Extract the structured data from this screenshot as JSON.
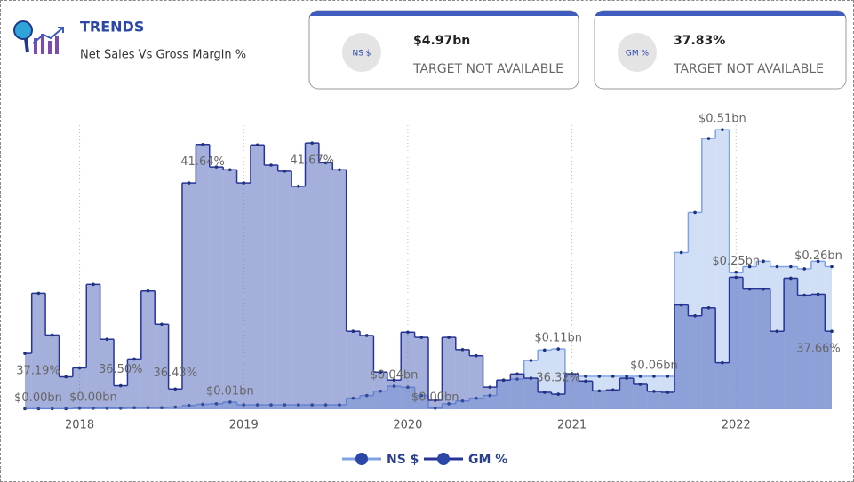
{
  "header": {
    "title": "TRENDS",
    "subtitle": "Net Sales Vs Gross Margin %"
  },
  "cards": [
    {
      "badge": "NS $",
      "value": "$4.97bn",
      "note": "TARGET NOT AVAILABLE"
    },
    {
      "badge": "GM %",
      "value": "37.83%",
      "note": "TARGET NOT AVAILABLE"
    }
  ],
  "chart_data": {
    "type": "step-area",
    "categories": [
      null,
      null,
      null,
      null,
      "2018",
      null,
      null,
      null,
      null,
      null,
      null,
      null,
      null,
      null,
      null,
      null,
      "2019",
      null,
      null,
      null,
      null,
      null,
      null,
      null,
      null,
      null,
      null,
      null,
      "2020",
      null,
      null,
      null,
      null,
      null,
      null,
      null,
      null,
      null,
      null,
      null,
      "2021",
      null,
      null,
      null,
      null,
      null,
      null,
      null,
      null,
      null,
      null,
      null,
      "2022",
      null,
      null,
      null,
      null,
      null,
      null,
      null
    ],
    "ylim": [
      0,
      0.52
    ],
    "y2lim": [
      36,
      42.07
    ],
    "grid": true,
    "legend": "bottom",
    "series": [
      {
        "name": "NS $",
        "color": "#7fa2e4",
        "fill": "#b3c9f0",
        "marker": "#1f3278",
        "values": [
          0.001,
          0.001,
          0.001,
          0.001,
          0.002,
          0.002,
          0.002,
          0.002,
          0.003,
          0.003,
          0.003,
          0.004,
          0.007,
          0.009,
          0.01,
          0.013,
          0.008,
          0.008,
          0.008,
          0.008,
          0.008,
          0.008,
          0.008,
          0.008,
          0.02,
          0.025,
          0.033,
          0.042,
          0.04,
          0.025,
          0.002,
          0.01,
          0.015,
          0.02,
          0.025,
          0.053,
          0.055,
          0.089,
          0.108,
          0.11,
          0.065,
          0.06,
          0.06,
          0.06,
          0.06,
          0.06,
          0.06,
          0.06,
          0.286,
          0.359,
          0.494,
          0.51,
          0.25,
          0.26,
          0.27,
          0.26,
          0.26,
          0.256,
          0.27,
          0.26
        ],
        "value_labels": [
          "$0.00bn",
          null,
          null,
          null,
          null,
          "$0.00bn",
          null,
          null,
          null,
          null,
          null,
          null,
          null,
          null,
          null,
          "$0.01bn",
          null,
          null,
          null,
          null,
          null,
          null,
          null,
          null,
          null,
          null,
          null,
          "$0.04bn",
          null,
          null,
          "$0.00bn",
          null,
          null,
          null,
          null,
          null,
          null,
          null,
          null,
          "$0.11bn",
          null,
          null,
          null,
          null,
          null,
          null,
          "$0.06bn",
          null,
          null,
          null,
          null,
          "$0.51bn",
          "$0.25bn",
          null,
          null,
          null,
          null,
          null,
          null,
          "$0.26bn"
        ]
      },
      {
        "name": "GM %",
        "color": "#26339a",
        "fill": "#4a62b8",
        "marker": "#1f3278",
        "axis": "y2",
        "values": [
          37.19,
          38.47,
          37.58,
          36.69,
          36.88,
          38.66,
          37.49,
          36.5,
          37.07,
          38.52,
          37.81,
          36.43,
          40.82,
          41.64,
          41.16,
          41.1,
          40.82,
          41.63,
          41.2,
          41.07,
          40.75,
          41.67,
          41.25,
          41.1,
          37.66,
          37.57,
          36.79,
          36.62,
          37.64,
          37.53,
          36.19,
          37.53,
          37.27,
          37.14,
          36.47,
          36.62,
          36.75,
          36.66,
          36.36,
          36.32,
          36.75,
          36.6,
          36.39,
          36.41,
          36.66,
          36.53,
          36.38,
          36.36,
          38.22,
          37.99,
          38.16,
          36.99,
          38.81,
          38.56,
          38.56,
          37.66,
          38.79,
          38.43,
          38.45,
          37.66
        ],
        "value_labels": [
          "37.19%",
          null,
          null,
          null,
          null,
          null,
          null,
          "36.50%",
          null,
          null,
          null,
          "36.43%",
          null,
          "41.64%",
          null,
          null,
          null,
          null,
          null,
          null,
          null,
          "41.67%",
          null,
          null,
          null,
          null,
          null,
          null,
          null,
          null,
          null,
          null,
          null,
          null,
          null,
          null,
          null,
          null,
          null,
          "36.32%",
          null,
          null,
          null,
          null,
          null,
          null,
          null,
          null,
          null,
          null,
          null,
          null,
          null,
          null,
          null,
          null,
          null,
          null,
          null,
          "37.66%"
        ]
      }
    ]
  }
}
